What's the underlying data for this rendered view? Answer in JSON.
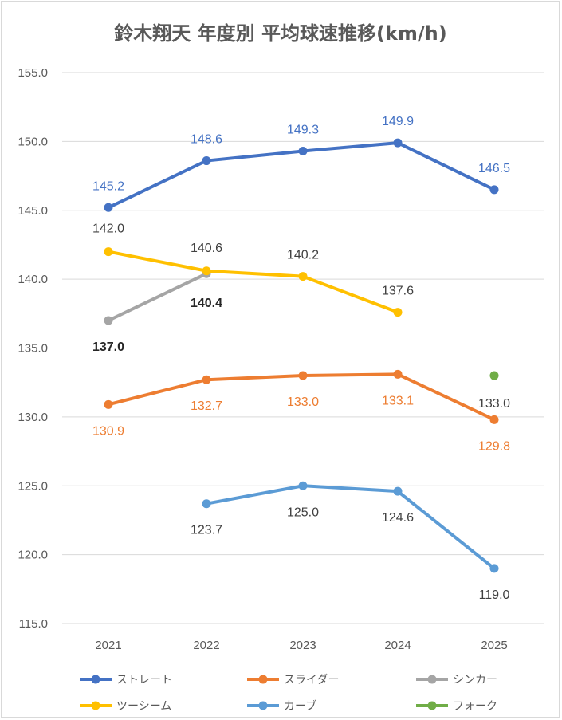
{
  "chart_data": {
    "type": "line",
    "title": "鈴木翔天 年度別 平均球速推移(km/h)",
    "categories": [
      "2021",
      "2022",
      "2023",
      "2024",
      "2025"
    ],
    "ylim": [
      115,
      155
    ],
    "yticks": [
      "115.0",
      "120.0",
      "125.0",
      "130.0",
      "135.0",
      "140.0",
      "145.0",
      "150.0",
      "155.0"
    ],
    "grid": true,
    "legend_position": "bottom",
    "series": [
      {
        "name": "ストレート",
        "color": "#4472C4",
        "values": [
          145.2,
          148.6,
          149.3,
          149.9,
          146.5
        ],
        "labels": [
          "145.2",
          "148.6",
          "149.3",
          "149.9",
          "146.5"
        ]
      },
      {
        "name": "スライダー",
        "color": "#ED7D31",
        "values": [
          130.9,
          132.7,
          133.0,
          133.1,
          129.8
        ],
        "labels": [
          "130.9",
          "132.7",
          "133.0",
          "133.1",
          "129.8"
        ]
      },
      {
        "name": "シンカー",
        "color": "#A5A5A5",
        "values": [
          137.0,
          140.4,
          null,
          null,
          null
        ],
        "labels": [
          "137.0",
          "140.4",
          null,
          null,
          null
        ]
      },
      {
        "name": "ツーシーム",
        "color": "#FFC000",
        "values": [
          142.0,
          140.6,
          140.2,
          137.6,
          null
        ],
        "labels": [
          "142.0",
          "140.6",
          "140.2",
          "137.6",
          null
        ]
      },
      {
        "name": "カーブ",
        "color": "#5B9BD5",
        "values": [
          null,
          123.7,
          125.0,
          124.6,
          119.0
        ],
        "labels": [
          null,
          "123.7",
          "125.0",
          "124.6",
          "119.0"
        ]
      },
      {
        "name": "フォーク",
        "color": "#70AD47",
        "values": [
          null,
          null,
          null,
          null,
          133.0
        ],
        "labels": [
          null,
          null,
          null,
          null,
          "133.0"
        ]
      }
    ]
  }
}
